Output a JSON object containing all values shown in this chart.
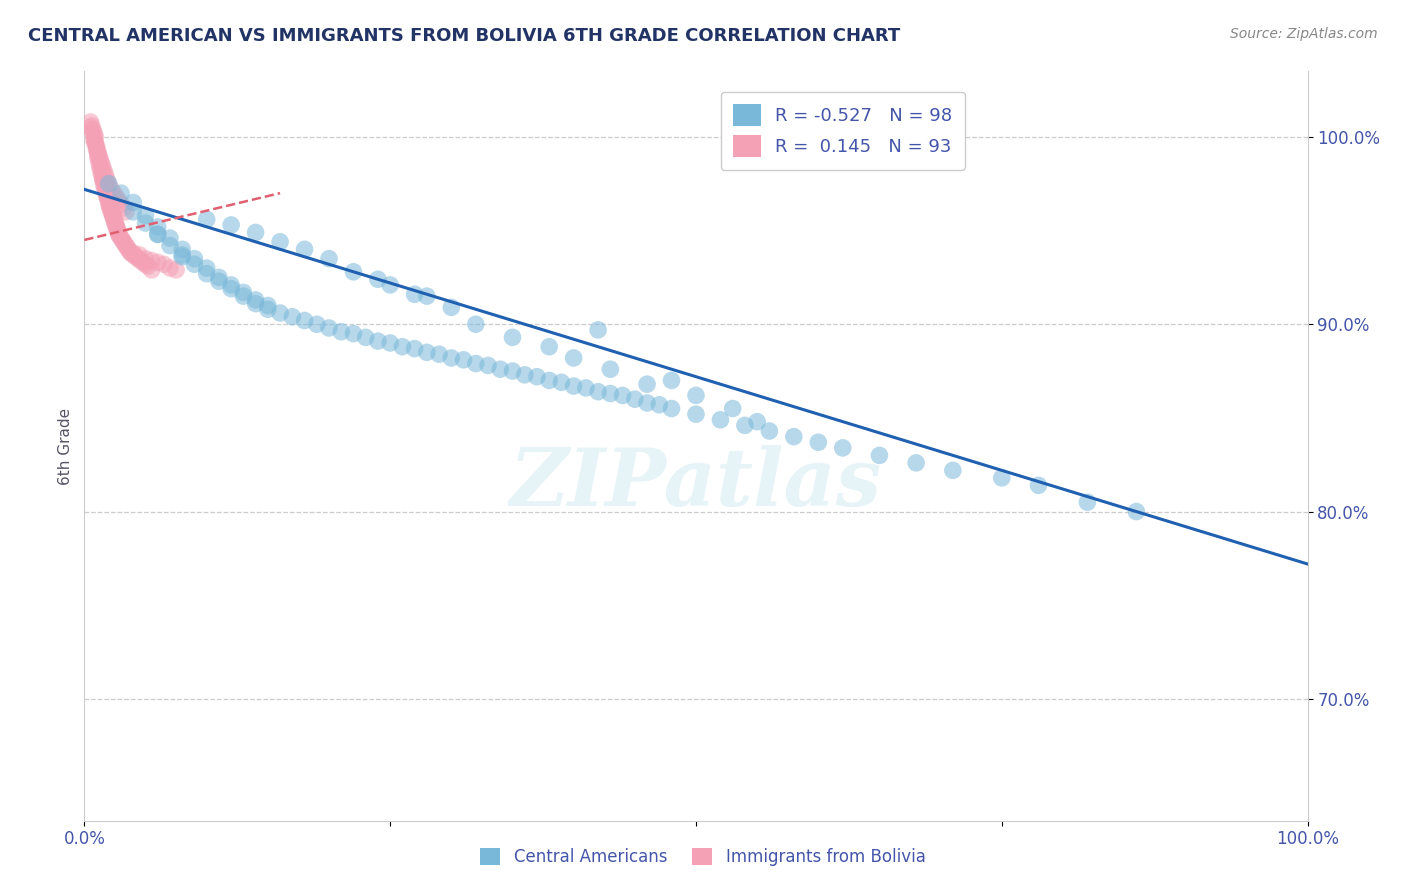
{
  "title": "CENTRAL AMERICAN VS IMMIGRANTS FROM BOLIVIA 6TH GRADE CORRELATION CHART",
  "source": "Source: ZipAtlas.com",
  "ylabel": "6th Grade",
  "xlim": [
    0.0,
    1.0
  ],
  "ylim": [
    0.635,
    1.035
  ],
  "xtick_positions": [
    0.0,
    0.25,
    0.5,
    0.75,
    1.0
  ],
  "xtick_labels": [
    "0.0%",
    "",
    "",
    "",
    "100.0%"
  ],
  "ytick_positions": [
    0.7,
    0.8,
    0.9,
    1.0
  ],
  "ytick_labels": [
    "70.0%",
    "80.0%",
    "90.0%",
    "100.0%"
  ],
  "legend_r_blue": "-0.527",
  "legend_n_blue": "98",
  "legend_r_pink": "0.145",
  "legend_n_pink": "93",
  "blue_color": "#7ab8d9",
  "pink_color": "#f4a0b5",
  "blue_line_color": "#2060b0",
  "pink_line_color": "#e06070",
  "watermark": "ZIPatlas",
  "blue_line_x": [
    0.0,
    1.0
  ],
  "blue_line_y": [
    0.972,
    0.772
  ],
  "pink_line_x": [
    0.0,
    0.16
  ],
  "pink_line_y": [
    0.945,
    0.97
  ],
  "blue_scatter_x": [
    0.02,
    0.03,
    0.04,
    0.04,
    0.05,
    0.05,
    0.06,
    0.06,
    0.07,
    0.07,
    0.08,
    0.08,
    0.09,
    0.09,
    0.1,
    0.1,
    0.11,
    0.11,
    0.12,
    0.12,
    0.13,
    0.13,
    0.14,
    0.14,
    0.15,
    0.15,
    0.16,
    0.17,
    0.18,
    0.19,
    0.2,
    0.21,
    0.22,
    0.23,
    0.24,
    0.25,
    0.26,
    0.27,
    0.28,
    0.29,
    0.3,
    0.31,
    0.32,
    0.33,
    0.34,
    0.35,
    0.36,
    0.37,
    0.38,
    0.39,
    0.4,
    0.41,
    0.42,
    0.43,
    0.44,
    0.45,
    0.46,
    0.47,
    0.48,
    0.5,
    0.52,
    0.54,
    0.56,
    0.58,
    0.6,
    0.62,
    0.65,
    0.68,
    0.71,
    0.75,
    0.78,
    0.42,
    0.48,
    0.5,
    0.53,
    0.55,
    0.38,
    0.4,
    0.43,
    0.46,
    0.32,
    0.35,
    0.28,
    0.3,
    0.25,
    0.27,
    0.22,
    0.24,
    0.2,
    0.18,
    0.16,
    0.14,
    0.12,
    0.1,
    0.08,
    0.06,
    0.82,
    0.86
  ],
  "blue_scatter_y": [
    0.975,
    0.97,
    0.965,
    0.96,
    0.958,
    0.954,
    0.952,
    0.948,
    0.946,
    0.942,
    0.94,
    0.937,
    0.935,
    0.932,
    0.93,
    0.927,
    0.925,
    0.923,
    0.921,
    0.919,
    0.917,
    0.915,
    0.913,
    0.911,
    0.91,
    0.908,
    0.906,
    0.904,
    0.902,
    0.9,
    0.898,
    0.896,
    0.895,
    0.893,
    0.891,
    0.89,
    0.888,
    0.887,
    0.885,
    0.884,
    0.882,
    0.881,
    0.879,
    0.878,
    0.876,
    0.875,
    0.873,
    0.872,
    0.87,
    0.869,
    0.867,
    0.866,
    0.864,
    0.863,
    0.862,
    0.86,
    0.858,
    0.857,
    0.855,
    0.852,
    0.849,
    0.846,
    0.843,
    0.84,
    0.837,
    0.834,
    0.83,
    0.826,
    0.822,
    0.818,
    0.814,
    0.897,
    0.87,
    0.862,
    0.855,
    0.848,
    0.888,
    0.882,
    0.876,
    0.868,
    0.9,
    0.893,
    0.915,
    0.909,
    0.921,
    0.916,
    0.928,
    0.924,
    0.935,
    0.94,
    0.944,
    0.949,
    0.953,
    0.956,
    0.936,
    0.948,
    0.805,
    0.8
  ],
  "pink_scatter_x": [
    0.005,
    0.007,
    0.008,
    0.009,
    0.01,
    0.01,
    0.011,
    0.011,
    0.012,
    0.012,
    0.013,
    0.013,
    0.014,
    0.014,
    0.015,
    0.015,
    0.016,
    0.016,
    0.017,
    0.017,
    0.018,
    0.018,
    0.019,
    0.019,
    0.02,
    0.02,
    0.021,
    0.021,
    0.022,
    0.022,
    0.023,
    0.023,
    0.024,
    0.024,
    0.025,
    0.025,
    0.026,
    0.026,
    0.027,
    0.027,
    0.028,
    0.028,
    0.029,
    0.03,
    0.031,
    0.032,
    0.033,
    0.034,
    0.035,
    0.036,
    0.037,
    0.038,
    0.04,
    0.042,
    0.044,
    0.046,
    0.048,
    0.05,
    0.052,
    0.055,
    0.008,
    0.009,
    0.01,
    0.011,
    0.012,
    0.013,
    0.014,
    0.015,
    0.016,
    0.017,
    0.018,
    0.019,
    0.02,
    0.022,
    0.024,
    0.026,
    0.028,
    0.03,
    0.032,
    0.034,
    0.005,
    0.006,
    0.007,
    0.008,
    0.009,
    0.04,
    0.045,
    0.05,
    0.055,
    0.06,
    0.065,
    0.07,
    0.075
  ],
  "pink_scatter_y": [
    1.005,
    1.002,
    0.999,
    0.997,
    0.995,
    0.993,
    0.991,
    0.989,
    0.988,
    0.986,
    0.984,
    0.983,
    0.981,
    0.98,
    0.978,
    0.977,
    0.976,
    0.974,
    0.973,
    0.972,
    0.97,
    0.969,
    0.968,
    0.967,
    0.966,
    0.964,
    0.963,
    0.962,
    0.961,
    0.96,
    0.959,
    0.958,
    0.957,
    0.956,
    0.955,
    0.954,
    0.953,
    0.952,
    0.951,
    0.95,
    0.949,
    0.948,
    0.947,
    0.946,
    0.945,
    0.944,
    0.943,
    0.942,
    0.941,
    0.94,
    0.939,
    0.938,
    0.937,
    0.936,
    0.935,
    0.934,
    0.933,
    0.932,
    0.931,
    0.929,
    0.998,
    0.996,
    0.994,
    0.992,
    0.99,
    0.988,
    0.986,
    0.984,
    0.982,
    0.98,
    0.978,
    0.976,
    0.974,
    0.972,
    0.97,
    0.968,
    0.966,
    0.964,
    0.962,
    0.96,
    1.008,
    1.006,
    1.004,
    1.002,
    1.0,
    0.938,
    0.937,
    0.935,
    0.934,
    0.933,
    0.932,
    0.93,
    0.929
  ]
}
